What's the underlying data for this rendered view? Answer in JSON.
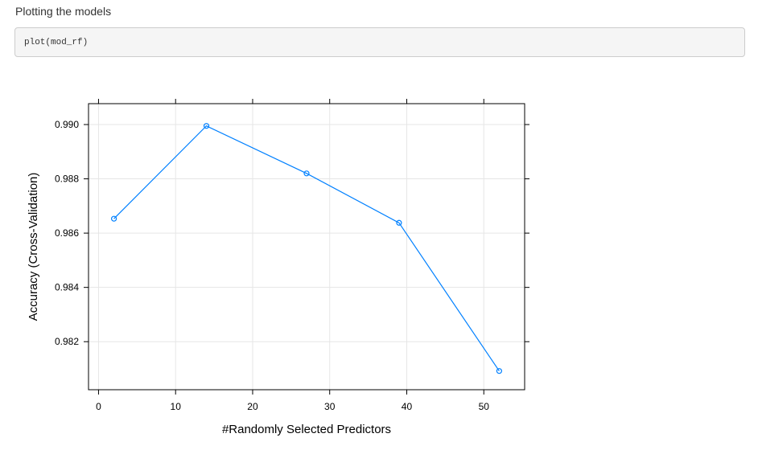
{
  "doc": {
    "paragraph": "Plotting the models",
    "code": "plot(mod_rf)"
  },
  "chart_data": {
    "type": "line",
    "xlabel": "#Randomly Selected Predictors",
    "ylabel": "Accuracy (Cross-Validation)",
    "x": [
      2,
      14,
      27,
      39,
      52
    ],
    "series": [
      {
        "values": [
          0.98653,
          0.98995,
          0.9882,
          0.98638,
          0.98092
        ]
      }
    ],
    "x_ticks": [
      0,
      10,
      20,
      30,
      40,
      50
    ],
    "x_tick_labels": [
      "0",
      "10",
      "20",
      "30",
      "40",
      "50"
    ],
    "y_ticks": [
      0.982,
      0.984,
      0.986,
      0.988,
      0.99
    ],
    "y_tick_labels": [
      "0.982",
      "0.984",
      "0.986",
      "0.988",
      "0.990"
    ],
    "xlim": [
      -1.3,
      55.3
    ],
    "ylim": [
      0.98023,
      0.99077
    ],
    "grid": true,
    "marker": "open-circle",
    "colors": {
      "line": "#0080ff",
      "grid": "#e6e6e6",
      "axis": "#000000"
    }
  }
}
